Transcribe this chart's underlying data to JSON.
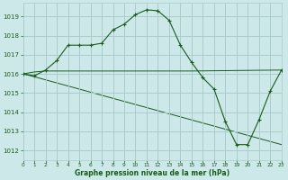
{
  "title": "Graphe pression niveau de la mer (hPa)",
  "background_color": "#cce8e8",
  "grid_color": "#aacccc",
  "line_color": "#1a5c1a",
  "xlim": [
    0,
    23
  ],
  "ylim": [
    1011.5,
    1019.7
  ],
  "yticks": [
    1012,
    1013,
    1014,
    1015,
    1016,
    1017,
    1018,
    1019
  ],
  "xticks": [
    0,
    1,
    2,
    3,
    4,
    5,
    6,
    7,
    8,
    9,
    10,
    11,
    12,
    13,
    14,
    15,
    16,
    17,
    18,
    19,
    20,
    21,
    22,
    23
  ],
  "series1_x": [
    0,
    1,
    2,
    3,
    4,
    5,
    6,
    7,
    8,
    9,
    10,
    11,
    12,
    13,
    14,
    15,
    16,
    17,
    18,
    19,
    20,
    21,
    22,
    23
  ],
  "series1_y": [
    1016.0,
    1015.9,
    1016.2,
    1016.7,
    1017.5,
    1017.5,
    1017.5,
    1017.6,
    1018.3,
    1018.6,
    1019.1,
    1019.35,
    1019.3,
    1018.8,
    1017.5,
    1016.6,
    1015.8,
    1015.2,
    1013.5,
    1012.3,
    1012.3,
    1013.6,
    1015.1,
    1016.2
  ],
  "series2_x": [
    0,
    1,
    2,
    14,
    15,
    23
  ],
  "series2_y": [
    1016.0,
    1016.1,
    1016.15,
    1016.15,
    1016.15,
    1016.2
  ],
  "series3_x": [
    0,
    1,
    23
  ],
  "series3_y": [
    1016.0,
    1015.85,
    1012.3
  ]
}
